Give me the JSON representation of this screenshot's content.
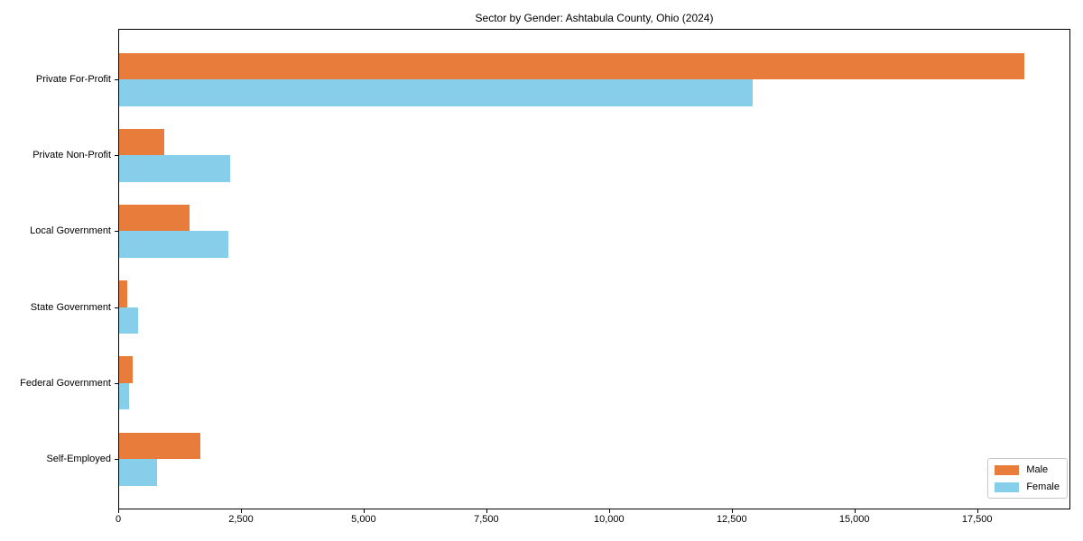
{
  "title": "Sector by Gender: Ashtabula County, Ohio (2024)",
  "chart_data": {
    "type": "bar",
    "orientation": "horizontal",
    "title": "Sector by Gender: Ashtabula County, Ohio (2024)",
    "categories": [
      "Private For-Profit",
      "Private Non-Profit",
      "Local Government",
      "State Government",
      "Federal Government",
      "Self-Employed"
    ],
    "series": [
      {
        "name": "Male",
        "color": "#E87C3B",
        "values": [
          18450,
          920,
          1430,
          160,
          270,
          1650
        ]
      },
      {
        "name": "Female",
        "color": "#87CEEB",
        "values": [
          12900,
          2270,
          2220,
          390,
          200,
          770
        ]
      }
    ],
    "xlabel": "",
    "ylabel": "",
    "xlim": [
      0,
      19400
    ],
    "xticks": [
      0,
      2500,
      5000,
      7500,
      10000,
      12500,
      15000,
      17500
    ],
    "xtick_labels": [
      "0",
      "2,500",
      "5,000",
      "7,500",
      "10,000",
      "12,500",
      "15,000",
      "17,500"
    ],
    "grid": false,
    "legend_position": "lower right",
    "background_color": "#ffffff",
    "axis_color": "#000000"
  }
}
